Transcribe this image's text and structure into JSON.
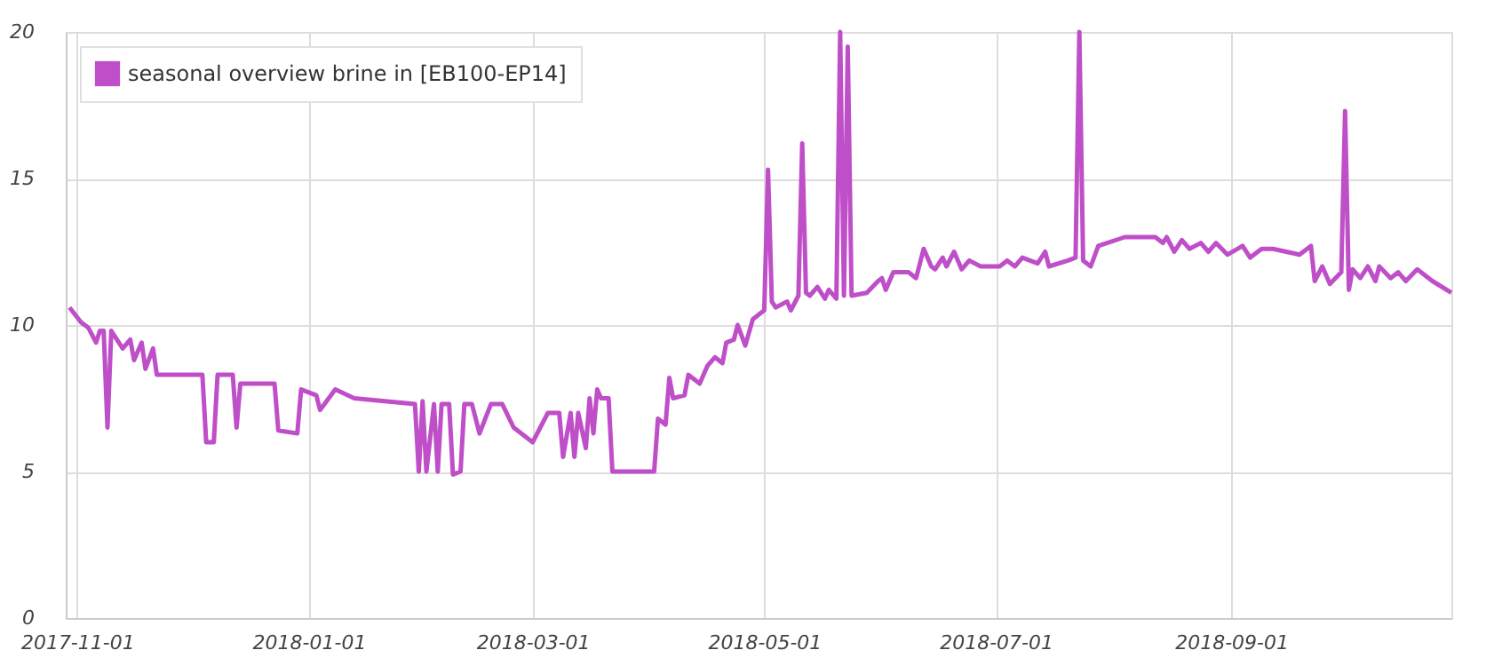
{
  "chart_data": {
    "type": "line",
    "x": [
      "2017-10-30",
      "2017-11-02",
      "2017-11-04",
      "2017-11-06",
      "2017-11-07",
      "2017-11-08",
      "2017-11-09",
      "2017-11-10",
      "2017-11-13",
      "2017-11-15",
      "2017-11-16",
      "2017-11-18",
      "2017-11-19",
      "2017-11-21",
      "2017-11-22",
      "2017-12-04",
      "2017-12-05",
      "2017-12-07",
      "2017-12-08",
      "2017-12-12",
      "2017-12-13",
      "2017-12-14",
      "2017-12-23",
      "2017-12-24",
      "2017-12-29",
      "2017-12-30",
      "2018-01-03",
      "2018-01-04",
      "2018-01-08",
      "2018-01-13",
      "2018-01-29",
      "2018-01-30",
      "2018-01-31",
      "2018-02-01",
      "2018-02-03",
      "2018-02-04",
      "2018-02-05",
      "2018-02-07",
      "2018-02-08",
      "2018-02-10",
      "2018-02-11",
      "2018-02-13",
      "2018-02-15",
      "2018-02-18",
      "2018-02-21",
      "2018-02-24",
      "2018-03-01",
      "2018-03-05",
      "2018-03-08",
      "2018-03-09",
      "2018-03-11",
      "2018-03-12",
      "2018-03-13",
      "2018-03-15",
      "2018-03-16",
      "2018-03-17",
      "2018-03-18",
      "2018-03-19",
      "2018-03-21",
      "2018-03-22",
      "2018-04-02",
      "2018-04-03",
      "2018-04-05",
      "2018-04-06",
      "2018-04-07",
      "2018-04-10",
      "2018-04-11",
      "2018-04-14",
      "2018-04-16",
      "2018-04-18",
      "2018-04-20",
      "2018-04-21",
      "2018-04-23",
      "2018-04-24",
      "2018-04-26",
      "2018-04-28",
      "2018-04-30",
      "2018-05-01",
      "2018-05-02",
      "2018-05-03",
      "2018-05-04",
      "2018-05-07",
      "2018-05-08",
      "2018-05-10",
      "2018-05-11",
      "2018-05-12",
      "2018-05-13",
      "2018-05-15",
      "2018-05-17",
      "2018-05-18",
      "2018-05-20",
      "2018-05-21",
      "2018-05-22",
      "2018-05-23",
      "2018-05-24",
      "2018-05-28",
      "2018-05-31",
      "2018-06-01",
      "2018-06-02",
      "2018-06-04",
      "2018-06-08",
      "2018-06-10",
      "2018-06-12",
      "2018-06-14",
      "2018-06-15",
      "2018-06-17",
      "2018-06-18",
      "2018-06-20",
      "2018-06-22",
      "2018-06-24",
      "2018-06-27",
      "2018-07-02",
      "2018-07-04",
      "2018-07-06",
      "2018-07-08",
      "2018-07-12",
      "2018-07-14",
      "2018-07-15",
      "2018-07-20",
      "2018-07-22",
      "2018-07-23",
      "2018-07-24",
      "2018-07-26",
      "2018-07-28",
      "2018-08-04",
      "2018-08-12",
      "2018-08-14",
      "2018-08-15",
      "2018-08-17",
      "2018-08-19",
      "2018-08-21",
      "2018-08-24",
      "2018-08-26",
      "2018-08-28",
      "2018-08-31",
      "2018-09-04",
      "2018-09-06",
      "2018-09-09",
      "2018-09-12",
      "2018-09-19",
      "2018-09-22",
      "2018-09-23",
      "2018-09-25",
      "2018-09-27",
      "2018-09-30",
      "2018-10-01",
      "2018-10-02",
      "2018-10-03",
      "2018-10-05",
      "2018-10-07",
      "2018-10-09",
      "2018-10-10",
      "2018-10-13",
      "2018-10-15",
      "2018-10-17",
      "2018-10-20",
      "2018-10-24",
      "2018-10-29"
    ],
    "series": [
      {
        "name": "seasonal overview brine in [EB100-EP14]",
        "color": "#bf4fc8",
        "values": [
          10.6,
          10.1,
          9.9,
          9.4,
          9.8,
          9.8,
          6.5,
          9.8,
          9.2,
          9.5,
          8.8,
          9.4,
          8.5,
          9.2,
          8.3,
          8.3,
          6.0,
          6.0,
          8.3,
          8.3,
          6.5,
          8.0,
          8.0,
          6.4,
          6.3,
          7.8,
          7.6,
          7.1,
          7.8,
          7.5,
          7.3,
          5.0,
          7.4,
          5.0,
          7.3,
          5.0,
          7.3,
          7.3,
          4.9,
          5.0,
          7.3,
          7.3,
          6.3,
          7.3,
          7.3,
          6.5,
          6.0,
          7.0,
          7.0,
          5.5,
          7.0,
          5.5,
          7.0,
          5.8,
          7.5,
          6.3,
          7.8,
          7.5,
          7.5,
          5.0,
          5.0,
          6.8,
          6.6,
          8.2,
          7.5,
          7.6,
          8.3,
          8.0,
          8.6,
          8.9,
          8.7,
          9.4,
          9.5,
          10.0,
          9.3,
          10.2,
          10.4,
          10.5,
          15.3,
          10.8,
          10.6,
          10.8,
          10.5,
          11.0,
          16.2,
          11.1,
          11.0,
          11.3,
          10.9,
          11.2,
          10.9,
          20,
          11.0,
          19.5,
          11.0,
          11.1,
          11.5,
          11.6,
          11.2,
          11.8,
          11.8,
          11.6,
          12.6,
          12.0,
          11.9,
          12.3,
          12.0,
          12.5,
          11.9,
          12.2,
          12.0,
          12.0,
          12.2,
          12.0,
          12.3,
          12.1,
          12.5,
          12.0,
          12.2,
          12.3,
          20,
          12.2,
          12.0,
          12.7,
          13.0,
          13.0,
          12.8,
          13.0,
          12.5,
          12.9,
          12.6,
          12.8,
          12.5,
          12.8,
          12.4,
          12.7,
          12.3,
          12.6,
          12.6,
          12.4,
          12.7,
          11.5,
          12.0,
          11.4,
          11.8,
          17.3,
          11.2,
          11.9,
          11.6,
          12.0,
          11.5,
          12.0,
          11.6,
          11.8,
          11.5,
          11.9,
          11.5,
          11.1
        ]
      }
    ],
    "xlim": [
      "2017-10-29",
      "2018-10-29"
    ],
    "xticks": [
      {
        "value": "2017-11-01",
        "label": "2017-11-01"
      },
      {
        "value": "2018-01-01",
        "label": "2018-01-01"
      },
      {
        "value": "2018-03-01",
        "label": "2018-03-01"
      },
      {
        "value": "2018-05-01",
        "label": "2018-05-01"
      },
      {
        "value": "2018-07-01",
        "label": "2018-07-01"
      },
      {
        "value": "2018-09-01",
        "label": "2018-09-01"
      }
    ],
    "ylim": [
      0,
      20
    ],
    "yticks": [
      0,
      5,
      10,
      15,
      20
    ],
    "grid": true,
    "legend": "top left",
    "marker": "none",
    "line_style": "solid"
  }
}
